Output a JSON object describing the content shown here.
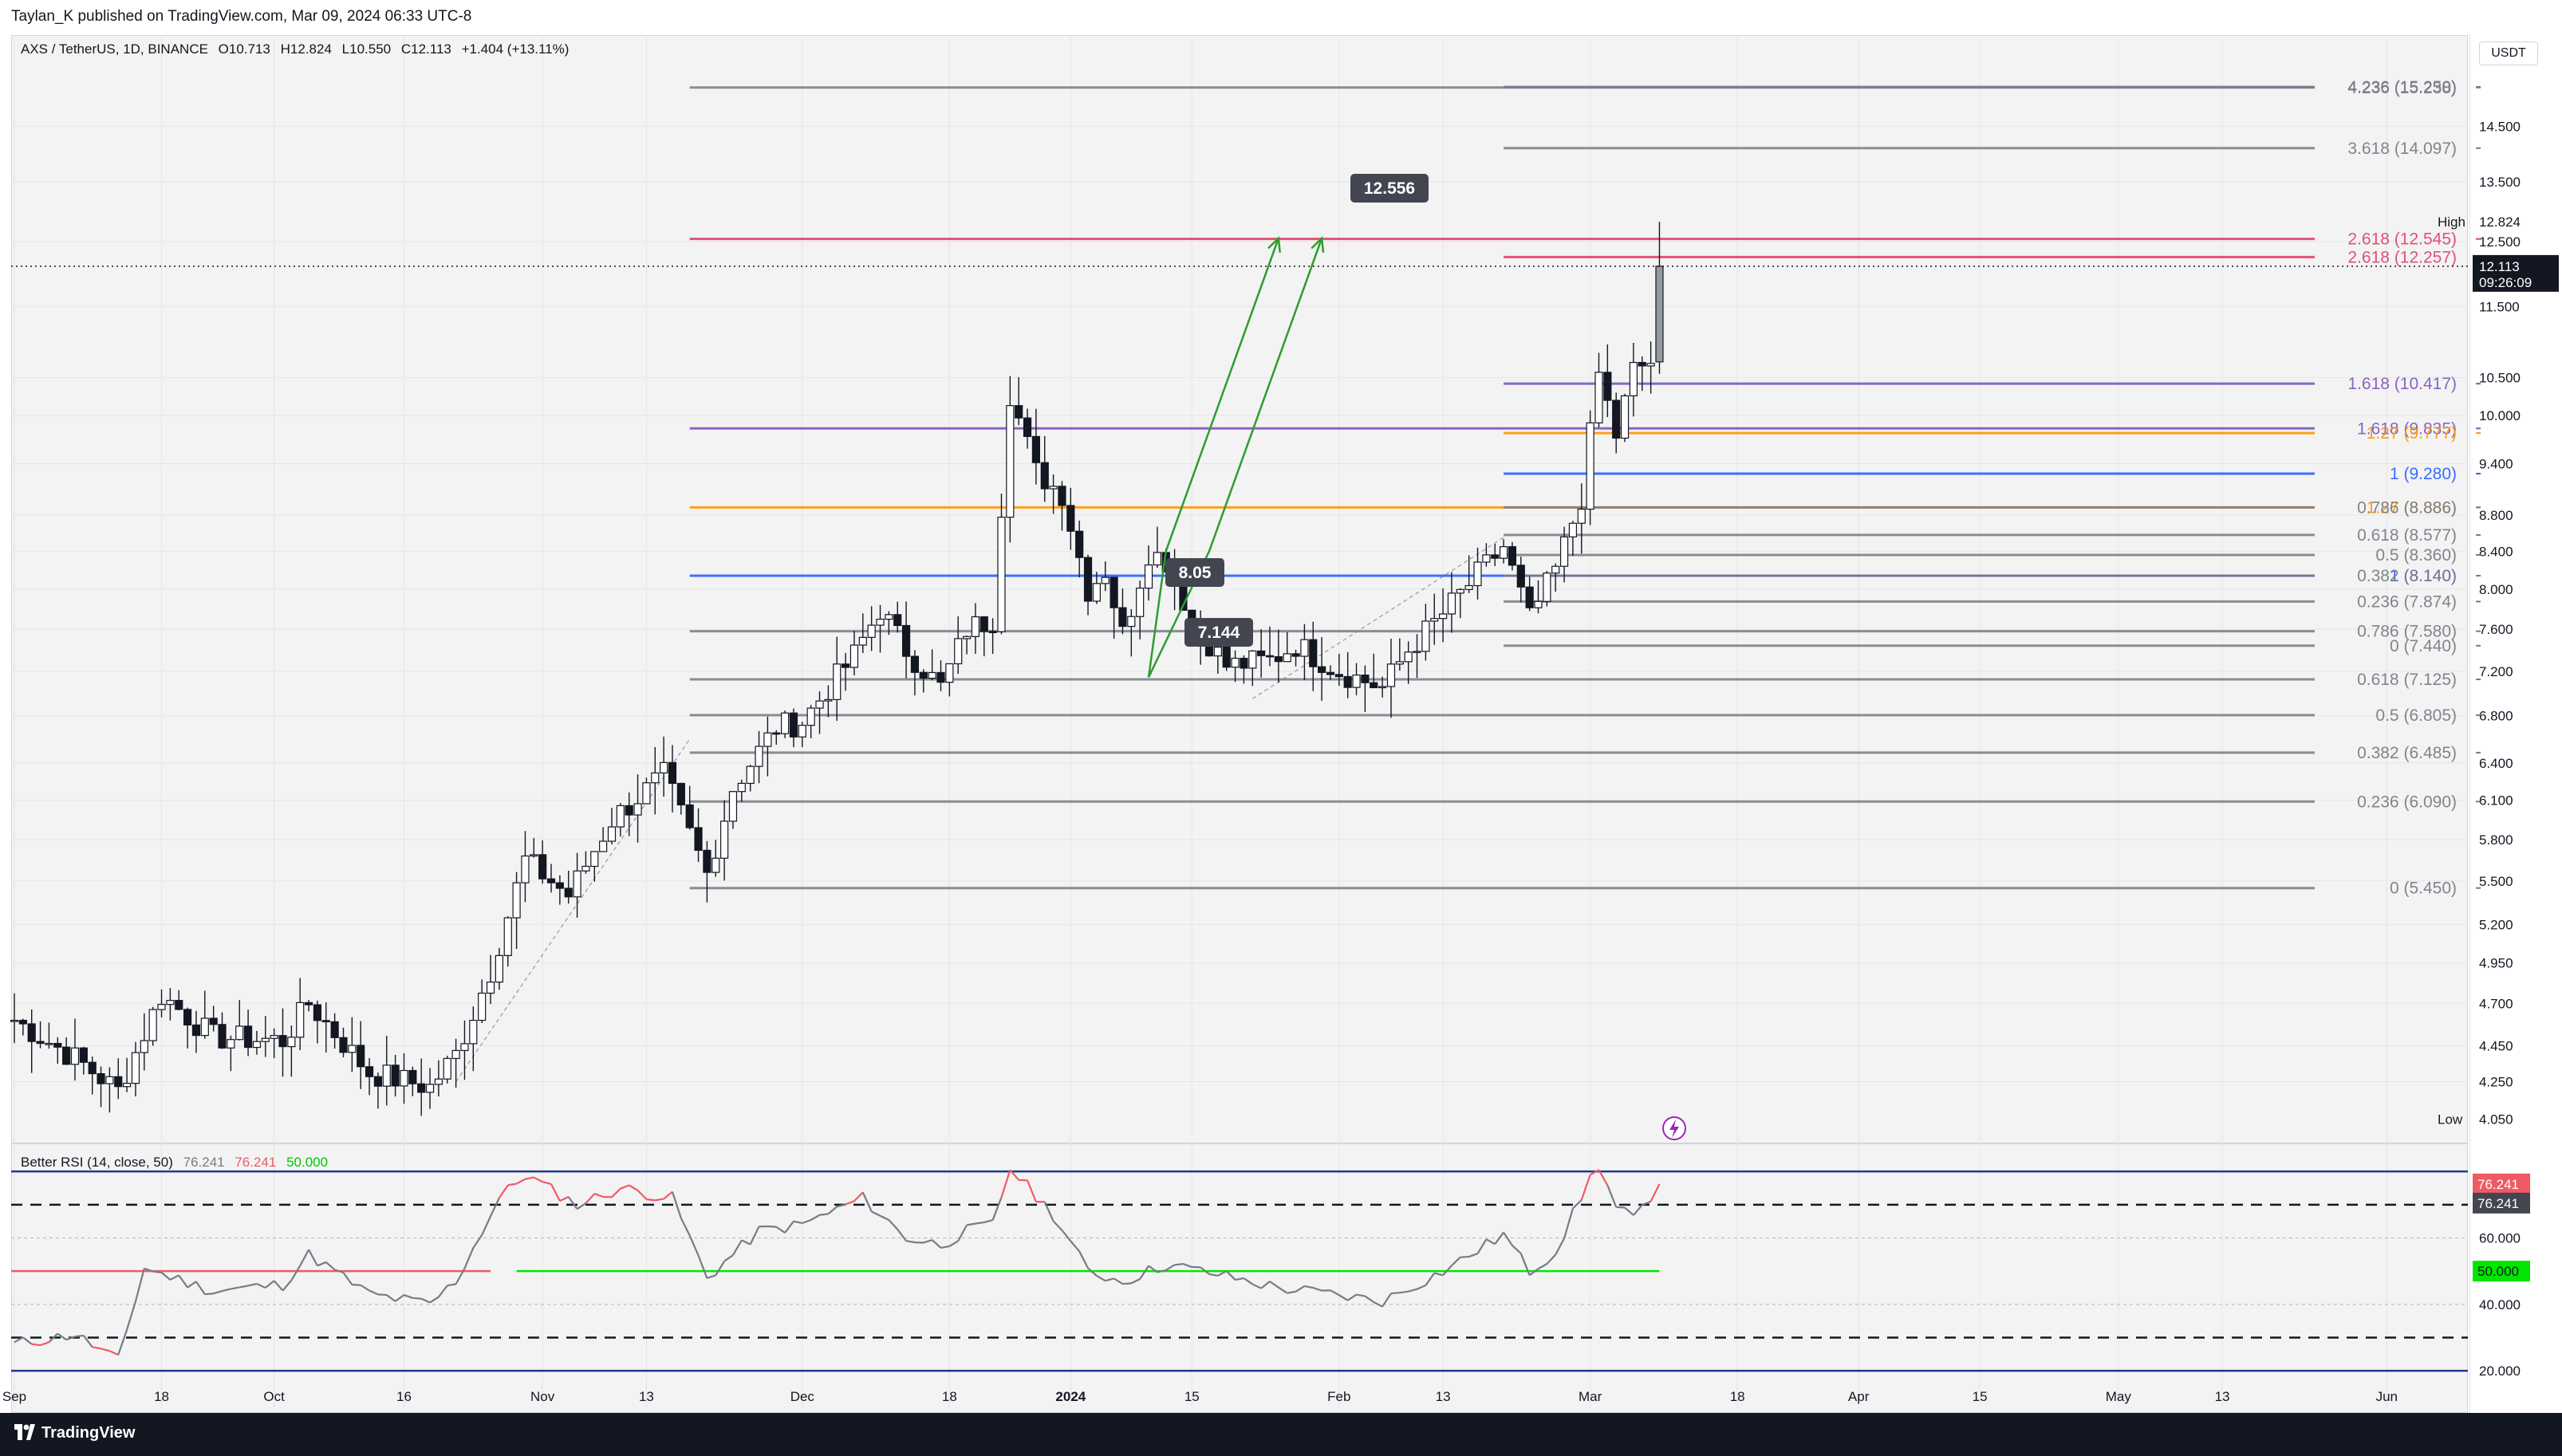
{
  "header": {
    "published": "Taylan_K published on TradingView.com, Mar 09, 2024 06:33 UTC-8"
  },
  "legend": {
    "symbol": "AXS / TetherUS, 1D, BINANCE",
    "open": "O10.713",
    "high": "H12.824",
    "low": "L10.550",
    "close": "C12.113",
    "change": "+1.404 (+13.11%)"
  },
  "rsi_legend": {
    "name": "Better RSI (14, close, 50)",
    "v1": "76.241",
    "v2": "76.241",
    "v3": "50.000"
  },
  "footer": {
    "brand": "TradingView"
  },
  "currency": "USDT",
  "colors": {
    "bull": "#ffffff",
    "bear": "#131722",
    "fib_gray": "#787b86",
    "fib_red": "#e0436b",
    "fib_purple": "#7e57c2",
    "fib_orange": "#ff9800",
    "fib_blue": "#2962ff",
    "rsi_line": "#787b86",
    "rsi_hot": "#f05a64",
    "rsi_mid": "#00e600",
    "rsi_band": "#1e3a8a",
    "arrow": "#2e9c2e"
  },
  "chart_data": [
    {
      "type": "candlestick",
      "title": "AXS / TetherUS, 1D, BINANCE",
      "y_axis_scale": "log",
      "ylim": [
        3.95,
        16.3
      ],
      "xlim": [
        "2023-09-01",
        "2024-06-10"
      ],
      "x_tick_labels": [
        {
          "date": "2023-09-01",
          "label": "Sep"
        },
        {
          "date": "2023-09-18",
          "label": "18"
        },
        {
          "date": "2023-10-01",
          "label": "Oct"
        },
        {
          "date": "2023-10-16",
          "label": "16"
        },
        {
          "date": "2023-11-01",
          "label": "Nov"
        },
        {
          "date": "2023-11-13",
          "label": "13"
        },
        {
          "date": "2023-12-01",
          "label": "Dec"
        },
        {
          "date": "2023-12-18",
          "label": "18"
        },
        {
          "date": "2024-01-01",
          "label": "2024"
        },
        {
          "date": "2024-01-15",
          "label": "15"
        },
        {
          "date": "2024-02-01",
          "label": "Feb"
        },
        {
          "date": "2024-02-13",
          "label": "13"
        },
        {
          "date": "2024-03-01",
          "label": "Mar"
        },
        {
          "date": "2024-03-18",
          "label": "18"
        },
        {
          "date": "2024-04-01",
          "label": "Apr"
        },
        {
          "date": "2024-04-15",
          "label": "15"
        },
        {
          "date": "2024-05-01",
          "label": "May"
        },
        {
          "date": "2024-05-13",
          "label": "13"
        },
        {
          "date": "2024-06-01",
          "label": "Jun"
        }
      ],
      "y_tick_labels": [
        "14.500",
        "13.500",
        "12.500",
        "11.500",
        "10.500",
        "10.000",
        "9.400",
        "8.800",
        "8.400",
        "8.000",
        "7.600",
        "7.200",
        "6.800",
        "6.400",
        "6.100",
        "5.800",
        "5.500",
        "5.200",
        "4.950",
        "4.700",
        "4.450",
        "4.250"
      ],
      "axis_labels": [
        {
          "label": "High",
          "value": 12.824,
          "text": "12.824"
        },
        {
          "label": "",
          "value": 12.113,
          "text": "12.113",
          "sub": "09:26:09",
          "style": "current"
        },
        {
          "label": "Low",
          "value": 4.05,
          "text": "4.050"
        }
      ],
      "anchors": [
        {
          "date": "2023-09-01",
          "price": 4.6
        },
        {
          "date": "2023-09-08",
          "price": 4.38
        },
        {
          "date": "2023-09-13",
          "price": 4.2
        },
        {
          "date": "2023-09-18",
          "price": 4.75
        },
        {
          "date": "2023-09-24",
          "price": 4.5
        },
        {
          "date": "2023-10-02",
          "price": 4.48
        },
        {
          "date": "2023-10-05",
          "price": 4.7
        },
        {
          "date": "2023-10-12",
          "price": 4.3
        },
        {
          "date": "2023-10-19",
          "price": 4.22
        },
        {
          "date": "2023-10-22",
          "price": 4.4
        },
        {
          "date": "2023-10-26",
          "price": 4.9
        },
        {
          "date": "2023-10-30",
          "price": 5.65
        },
        {
          "date": "2023-11-04",
          "price": 5.4
        },
        {
          "date": "2023-11-09",
          "price": 5.95
        },
        {
          "date": "2023-11-15",
          "price": 6.3
        },
        {
          "date": "2023-11-20",
          "price": 5.55
        },
        {
          "date": "2023-11-23",
          "price": 6.2
        },
        {
          "date": "2023-11-28",
          "price": 6.7
        },
        {
          "date": "2023-12-01",
          "price": 6.75
        },
        {
          "date": "2023-12-07",
          "price": 7.35
        },
        {
          "date": "2023-12-10",
          "price": 7.8
        },
        {
          "date": "2023-12-13",
          "price": 7.4
        },
        {
          "date": "2023-12-17",
          "price": 7.05
        },
        {
          "date": "2023-12-20",
          "price": 7.6
        },
        {
          "date": "2023-12-23",
          "price": 7.7
        },
        {
          "date": "2023-12-25",
          "price": 10.3
        },
        {
          "date": "2023-12-28",
          "price": 9.3
        },
        {
          "date": "2023-12-31",
          "price": 9.05
        },
        {
          "date": "2024-01-03",
          "price": 8.0
        },
        {
          "date": "2024-01-05",
          "price": 8.2
        },
        {
          "date": "2024-01-07",
          "price": 7.55
        },
        {
          "date": "2024-01-10",
          "price": 8.4
        },
        {
          "date": "2024-01-12",
          "price": 8.3
        },
        {
          "date": "2024-01-15",
          "price": 7.7
        },
        {
          "date": "2024-01-19",
          "price": 7.25
        },
        {
          "date": "2024-01-24",
          "price": 7.3
        },
        {
          "date": "2024-01-27",
          "price": 7.45
        },
        {
          "date": "2024-02-01",
          "price": 7.2
        },
        {
          "date": "2024-02-06",
          "price": 7.05
        },
        {
          "date": "2024-02-09",
          "price": 7.4
        },
        {
          "date": "2024-02-13",
          "price": 7.75
        },
        {
          "date": "2024-02-17",
          "price": 8.15
        },
        {
          "date": "2024-02-20",
          "price": 8.45
        },
        {
          "date": "2024-02-23",
          "price": 7.7
        },
        {
          "date": "2024-02-26",
          "price": 8.2
        },
        {
          "date": "2024-02-29",
          "price": 9.0
        },
        {
          "date": "2024-03-02",
          "price": 10.55
        },
        {
          "date": "2024-03-04",
          "price": 9.75
        },
        {
          "date": "2024-03-06",
          "price": 10.6
        },
        {
          "date": "2024-03-08",
          "price": 10.713
        },
        {
          "date": "2024-03-09",
          "price": 12.113
        }
      ],
      "last_candle": {
        "date": "2024-03-09",
        "open": 10.713,
        "high": 12.824,
        "low": 10.55,
        "close": 12.113
      }
    },
    {
      "type": "fib_levels",
      "sets": [
        {
          "start": "2023-11-18",
          "end": "2024-06-10",
          "levels": [
            {
              "ratio": "4.236",
              "value": 15.238,
              "color": "gray"
            },
            {
              "ratio": "2.618",
              "value": 12.545,
              "color": "red"
            },
            {
              "ratio": "1.618",
              "value": 9.835,
              "color": "purple"
            },
            {
              "ratio": "1.27",
              "value": 8.886,
              "color": "orange"
            },
            {
              "ratio": "1",
              "value": 8.14,
              "color": "blue"
            },
            {
              "ratio": "0.786",
              "value": 7.58,
              "color": "gray"
            },
            {
              "ratio": "0.618",
              "value": 7.125,
              "color": "gray"
            },
            {
              "ratio": "0.5",
              "value": 6.805,
              "color": "gray"
            },
            {
              "ratio": "0.382",
              "value": 6.485,
              "color": "gray"
            },
            {
              "ratio": "0.236",
              "value": 6.09,
              "color": "gray"
            },
            {
              "ratio": "0",
              "value": 5.45,
              "color": "gray"
            }
          ],
          "labels": [
            {
              "text": "4.236 (15.238)",
              "value": 15.238,
              "color": "gray"
            },
            {
              "text": "2.618 (12.545)",
              "value": 12.545,
              "color": "red"
            },
            {
              "text": "1.618 (9.835)",
              "value": 9.835,
              "color": "purple"
            },
            {
              "text": "1.27 (8.886)",
              "value": 8.886,
              "color": "orange"
            },
            {
              "text": "1 (8.140)",
              "value": 8.14,
              "color": "blue"
            },
            {
              "text": "0.786 (7.580)",
              "value": 7.58,
              "color": "gray"
            },
            {
              "text": "0.618 (7.125)",
              "value": 7.125,
              "color": "gray"
            },
            {
              "text": "0.5 (6.805)",
              "value": 6.805,
              "color": "gray"
            },
            {
              "text": "0.382 (6.485)",
              "value": 6.485,
              "color": "gray"
            },
            {
              "text": "0.236 (6.090)",
              "value": 6.09,
              "color": "gray"
            },
            {
              "text": "0 (5.450)",
              "value": 5.45,
              "color": "gray"
            }
          ]
        },
        {
          "start": "2024-02-20",
          "end": "2024-06-10",
          "levels": [
            {
              "ratio": "4.236",
              "value": 15.25,
              "color": "gray"
            },
            {
              "ratio": "3.618",
              "value": 14.097,
              "color": "gray"
            },
            {
              "ratio": "2.618",
              "value": 12.257,
              "color": "red"
            },
            {
              "ratio": "1.618",
              "value": 10.417,
              "color": "purple"
            },
            {
              "ratio": "1.27",
              "value": 9.777,
              "color": "orange"
            },
            {
              "ratio": "1",
              "value": 9.28,
              "color": "blue"
            },
            {
              "ratio": "0.786",
              "value": 8.886,
              "color": "gray"
            },
            {
              "ratio": "0.618",
              "value": 8.577,
              "color": "gray"
            },
            {
              "ratio": "0.5",
              "value": 8.36,
              "color": "gray"
            },
            {
              "ratio": "0.382",
              "value": 8.14,
              "color": "gray"
            },
            {
              "ratio": "0.236",
              "value": 7.874,
              "color": "gray"
            },
            {
              "ratio": "0",
              "value": 7.44,
              "color": "gray"
            }
          ],
          "labels": [
            {
              "text": "4.236 (15.250)",
              "value": 15.25,
              "color": "gray"
            },
            {
              "text": "3.618 (14.097)",
              "value": 14.097,
              "color": "gray"
            },
            {
              "text": "2.618 (12.257)",
              "value": 12.257,
              "color": "red"
            },
            {
              "text": "1.618 (10.417)",
              "value": 10.417,
              "color": "purple"
            },
            {
              "text": "1.27 (9.777)",
              "value": 9.777,
              "color": "orange"
            },
            {
              "text": "1 (9.280)",
              "value": 9.28,
              "color": "blue"
            },
            {
              "text": "0.786 (8.886)",
              "value": 8.886,
              "color": "gray"
            },
            {
              "text": "0.618 (8.577)",
              "value": 8.577,
              "color": "gray"
            },
            {
              "text": "0.5 (8.360)",
              "value": 8.36,
              "color": "gray"
            },
            {
              "text": "0.382 (8.140)",
              "value": 8.14,
              "color": "gray"
            },
            {
              "text": "0.236 (7.874)",
              "value": 7.874,
              "color": "gray"
            },
            {
              "text": "0 (7.440)",
              "value": 7.44,
              "color": "gray"
            }
          ]
        }
      ]
    },
    {
      "type": "annotations",
      "callouts": [
        {
          "text": "12.556",
          "date": "2024-01-28",
          "price": 12.556
        },
        {
          "text": "7.144",
          "date": "2024-01-11",
          "price": 7.144
        },
        {
          "text": "8.05",
          "date": "2024-01-11",
          "price": 8.05
        }
      ],
      "arrows": [
        {
          "points": [
            {
              "date": "2024-01-10",
              "price": 7.144
            },
            {
              "date": "2024-01-12",
              "price": 8.4
            },
            {
              "date": "2024-01-25",
              "price": 12.556
            }
          ]
        },
        {
          "points": [
            {
              "date": "2024-01-10",
              "price": 7.144
            },
            {
              "date": "2024-01-17",
              "price": 8.4
            },
            {
              "date": "2024-01-30",
              "price": 12.556
            }
          ]
        }
      ],
      "dashed_trend_segments": [
        {
          "from": {
            "date": "2023-10-22",
            "price": 4.25
          },
          "to": {
            "date": "2023-11-18",
            "price": 6.6
          }
        },
        {
          "from": {
            "date": "2024-01-22",
            "price": 6.95
          },
          "to": {
            "date": "2024-02-20",
            "price": 8.55
          }
        }
      ]
    },
    {
      "type": "line",
      "title": "Better RSI (14, close, 50)",
      "ylim": [
        15,
        87
      ],
      "y_tick_labels": [
        "60.000",
        "40.000",
        "20.000"
      ],
      "levels": {
        "upper_band": 80,
        "upper": 70,
        "mid": 50,
        "lower": 30,
        "lower_band": 20
      },
      "value_labels": [
        {
          "value": 76.241,
          "text": "76.241",
          "style": "hot"
        },
        {
          "value": 76.241,
          "text": "76.241",
          "style": "neutral"
        },
        {
          "value": 50.0,
          "text": "50.000",
          "style": "mid"
        }
      ],
      "anchors": [
        {
          "date": "2023-09-01",
          "value": 28
        },
        {
          "date": "2023-09-08",
          "value": 31
        },
        {
          "date": "2023-09-13",
          "value": 23
        },
        {
          "date": "2023-09-16",
          "value": 51
        },
        {
          "date": "2023-09-24",
          "value": 44
        },
        {
          "date": "2023-10-02",
          "value": 46
        },
        {
          "date": "2023-10-05",
          "value": 55
        },
        {
          "date": "2023-10-12",
          "value": 43
        },
        {
          "date": "2023-10-19",
          "value": 40
        },
        {
          "date": "2023-10-22",
          "value": 47
        },
        {
          "date": "2023-10-27",
          "value": 72
        },
        {
          "date": "2023-10-30",
          "value": 79
        },
        {
          "date": "2023-11-05",
          "value": 70
        },
        {
          "date": "2023-11-10",
          "value": 75
        },
        {
          "date": "2023-11-16",
          "value": 72
        },
        {
          "date": "2023-11-20",
          "value": 48
        },
        {
          "date": "2023-11-26",
          "value": 62
        },
        {
          "date": "2023-12-01",
          "value": 64
        },
        {
          "date": "2023-12-08",
          "value": 72
        },
        {
          "date": "2023-12-13",
          "value": 60
        },
        {
          "date": "2023-12-17",
          "value": 58
        },
        {
          "date": "2023-12-20",
          "value": 62
        },
        {
          "date": "2023-12-23",
          "value": 64
        },
        {
          "date": "2023-12-25",
          "value": 81
        },
        {
          "date": "2023-12-30",
          "value": 67
        },
        {
          "date": "2024-01-03",
          "value": 50
        },
        {
          "date": "2024-01-07",
          "value": 47
        },
        {
          "date": "2024-01-12",
          "value": 52
        },
        {
          "date": "2024-01-18",
          "value": 49
        },
        {
          "date": "2024-01-25",
          "value": 45
        },
        {
          "date": "2024-02-06",
          "value": 41
        },
        {
          "date": "2024-02-13",
          "value": 50
        },
        {
          "date": "2024-02-20",
          "value": 61
        },
        {
          "date": "2024-02-23",
          "value": 50
        },
        {
          "date": "2024-02-26",
          "value": 56
        },
        {
          "date": "2024-03-01",
          "value": 78
        },
        {
          "date": "2024-03-02",
          "value": 82
        },
        {
          "date": "2024-03-04",
          "value": 69
        },
        {
          "date": "2024-03-06",
          "value": 66
        },
        {
          "date": "2024-03-08",
          "value": 70
        },
        {
          "date": "2024-03-09",
          "value": 76.241
        }
      ]
    }
  ]
}
